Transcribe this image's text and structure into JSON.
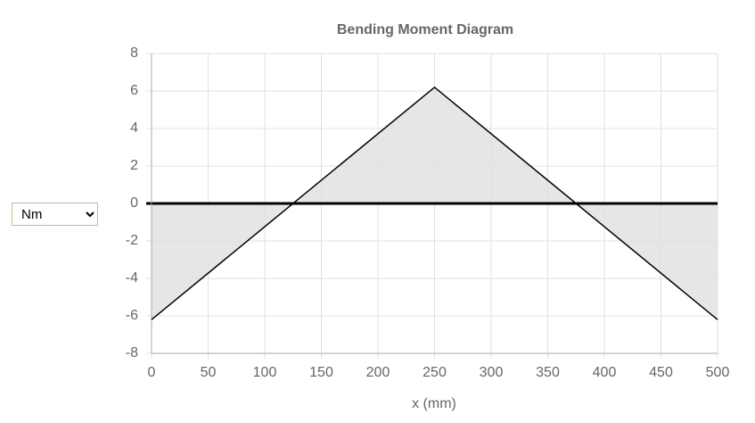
{
  "unit_select": {
    "selected": "Nm"
  },
  "chart_data": {
    "type": "area",
    "title": "Bending Moment Diagram",
    "x_label": "x (mm)",
    "x": [
      0,
      250,
      500
    ],
    "values": [
      -6.2,
      6.2,
      -6.2
    ],
    "color": "#000000",
    "fill_color": "#e6e6e6",
    "xlim": [
      0,
      500
    ],
    "xticks": [
      0,
      50,
      100,
      150,
      200,
      250,
      300,
      350,
      400,
      450,
      500
    ],
    "ylim": [
      -8,
      8
    ],
    "yticks": [
      -8,
      -6,
      -4,
      -2,
      0,
      2,
      4,
      6,
      8
    ],
    "grid": true
  }
}
